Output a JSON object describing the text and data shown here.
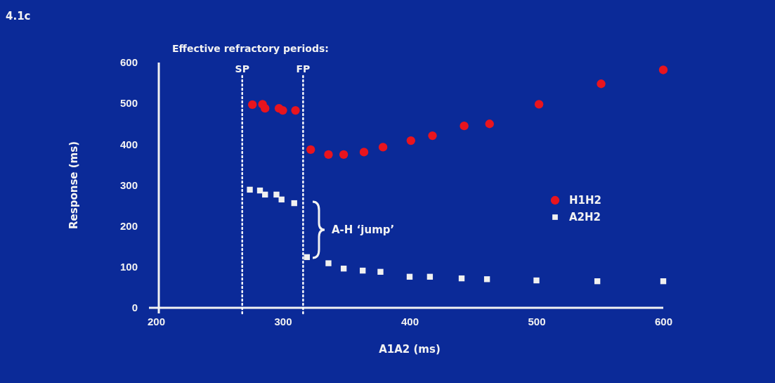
{
  "chart_data": {
    "type": "scatter",
    "xlabel": "A1A2 (ms)",
    "ylabel": "Response (ms)",
    "xlim": [
      200,
      600
    ],
    "xticks": [
      200,
      300,
      400,
      500,
      600
    ],
    "ylim": [
      0,
      600
    ],
    "yticks": [
      0,
      100,
      200,
      300,
      400,
      500,
      600
    ],
    "grid": false,
    "legend": "right",
    "series": [
      {
        "name": "H1H2",
        "color": "#e8141e",
        "marker": "circle",
        "x": [
          276,
          284,
          286,
          297,
          300,
          310,
          322,
          336,
          348,
          364,
          379,
          401,
          418,
          443,
          463,
          502,
          551,
          600
        ],
        "values": [
          497,
          498,
          488,
          488,
          483,
          483,
          387,
          375,
          375,
          381,
          393,
          409,
          421,
          445,
          450,
          498,
          548,
          582
        ]
      },
      {
        "name": "A2H2",
        "color": "#f0f0f0",
        "marker": "square",
        "x": [
          274,
          282,
          286,
          295,
          299,
          309,
          319,
          336,
          348,
          363,
          377,
          400,
          416,
          441,
          461,
          500,
          548,
          600
        ],
        "values": [
          289,
          287,
          277,
          277,
          265,
          256,
          124,
          109,
          96,
          91,
          88,
          76,
          76,
          72,
          70,
          67,
          65,
          65
        ]
      }
    ],
    "ref_lines": [
      {
        "axis": "x",
        "value": 268,
        "label": "SP",
        "color": "#ffffff",
        "line_style": "dotted"
      },
      {
        "axis": "x",
        "value": 316,
        "label": "FP",
        "color": "#ffffff",
        "line_style": "dotted"
      }
    ],
    "annotations": [
      "4.1c",
      "Effective refractory periods:",
      "A-H ‘jump’"
    ]
  }
}
